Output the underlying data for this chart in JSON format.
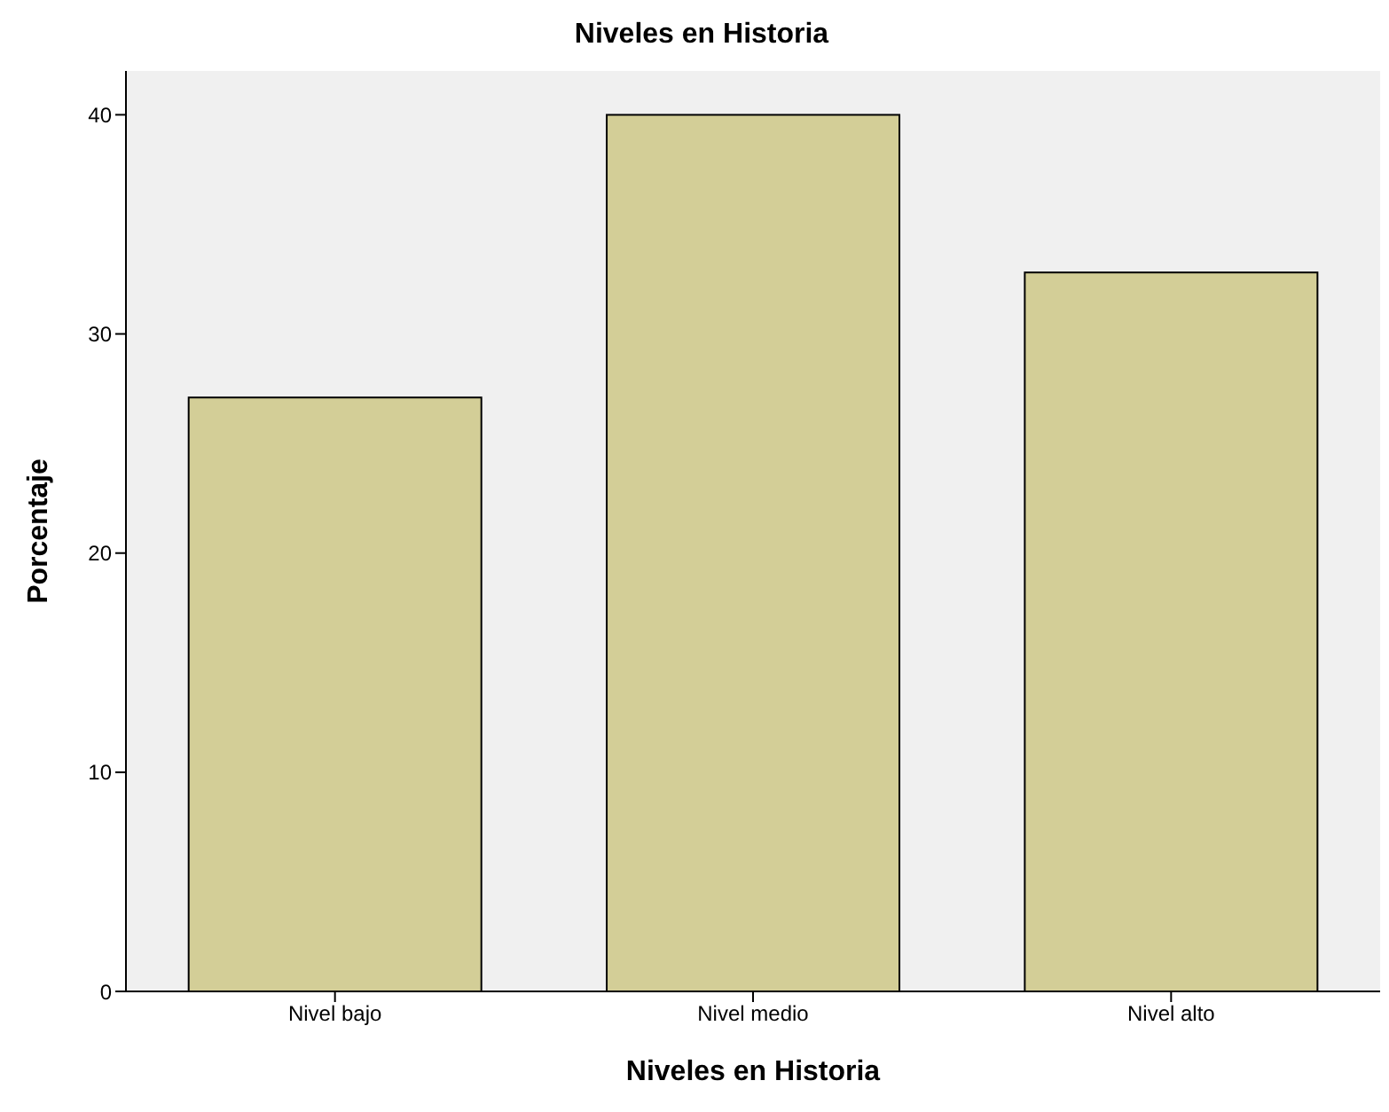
{
  "chart_data": {
    "type": "bar",
    "title": "Niveles en Historia",
    "xlabel": "Niveles en Historia",
    "ylabel": "Porcentaje",
    "categories": [
      "Nivel bajo",
      "Nivel medio",
      "Nivel alto"
    ],
    "values": [
      27.1,
      40.0,
      32.8
    ],
    "color": "#d3ce97",
    "ylim": [
      0,
      42
    ],
    "yticks": [
      0,
      10,
      20,
      30,
      40
    ],
    "grid": false
  }
}
